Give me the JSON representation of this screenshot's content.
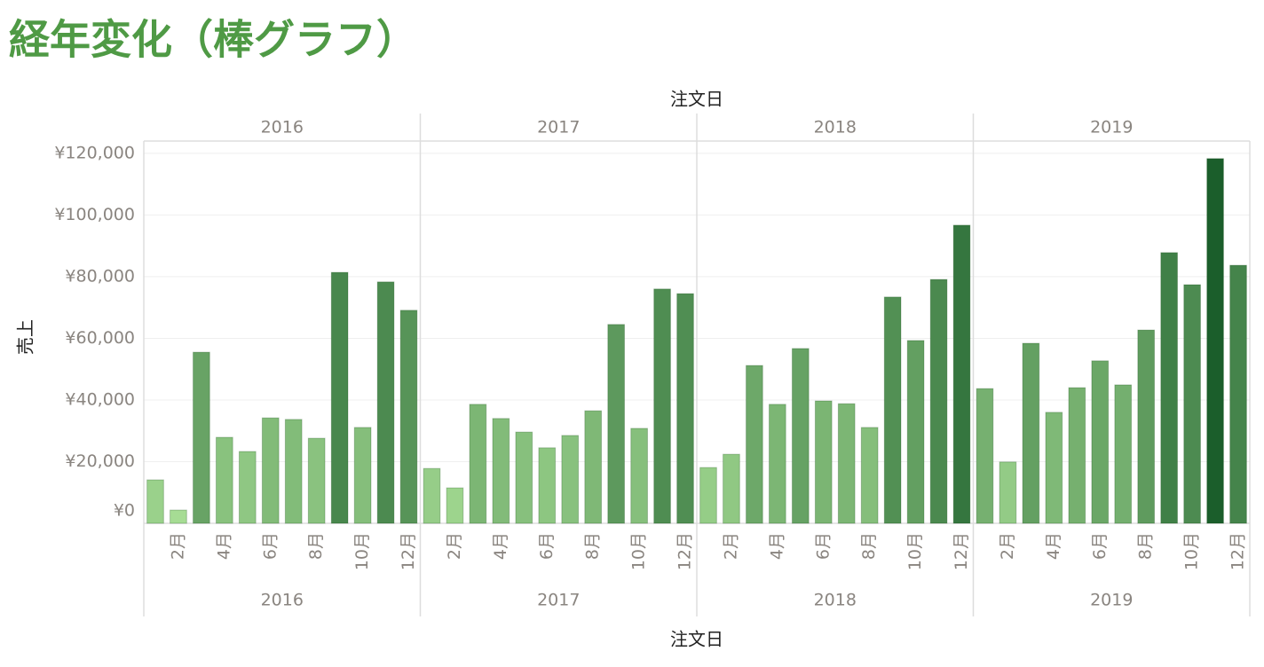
{
  "chart_data": {
    "type": "bar",
    "title": "経年変化（棒グラフ）",
    "x_title_top": "注文日",
    "x_title": "注文日",
    "y_title": "売上",
    "categories": [
      null,
      "2月",
      null,
      "4月",
      null,
      "6月",
      null,
      "8月",
      null,
      "10月",
      null,
      "12月"
    ],
    "panels": [
      {
        "name": "2016",
        "values": [
          14100,
          4300,
          55500,
          27900,
          23300,
          34200,
          33700,
          27600,
          81400,
          31100,
          78300,
          69100
        ]
      },
      {
        "name": "2017",
        "values": [
          17800,
          11500,
          38600,
          34000,
          29600,
          24500,
          28500,
          36500,
          64500,
          30800,
          76000,
          74500
        ]
      },
      {
        "name": "2018",
        "values": [
          18100,
          22400,
          51200,
          38600,
          56700,
          39700,
          38800,
          31100,
          73400,
          59300,
          79100,
          96700
        ]
      },
      {
        "name": "2019",
        "values": [
          43700,
          19900,
          58400,
          36000,
          44000,
          52700,
          44900,
          62700,
          87800,
          77400,
          118300,
          83700
        ]
      }
    ],
    "color_scale": [
      "#a6dc94",
      "#1b5e2b"
    ],
    "ylim": [
      0,
      124000
    ],
    "yticks": [
      {
        "value": 0,
        "label": "¥0"
      },
      {
        "value": 20000,
        "label": "¥20,000"
      },
      {
        "value": 40000,
        "label": "¥40,000"
      },
      {
        "value": 60000,
        "label": "¥60,000"
      },
      {
        "value": 80000,
        "label": "¥80,000"
      },
      {
        "value": 100000,
        "label": "¥100,000"
      },
      {
        "value": 120000,
        "label": "¥120,000"
      }
    ],
    "grid": true
  }
}
